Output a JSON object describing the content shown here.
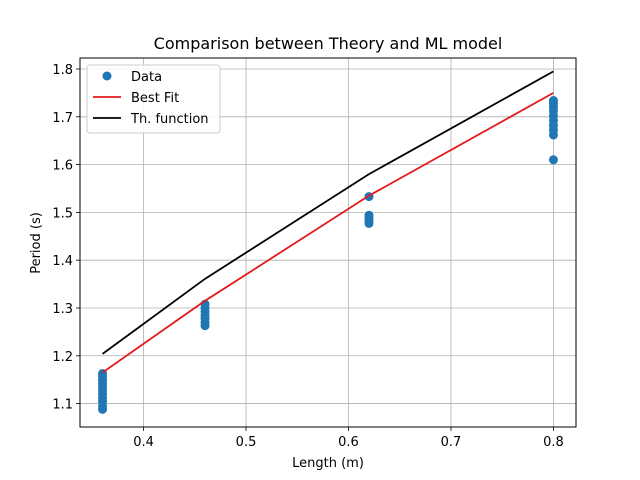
{
  "chart_data": {
    "type": "scatter",
    "title": "Comparison between Theory and ML model",
    "xlabel": "Length (m)",
    "ylabel": "Period (s)",
    "xlim": [
      0.338,
      0.822
    ],
    "ylim": [
      1.051,
      1.823
    ],
    "xticks": [
      "0.4",
      "0.5",
      "0.6",
      "0.7",
      "0.8"
    ],
    "yticks": [
      "1.1",
      "1.2",
      "1.3",
      "1.4",
      "1.5",
      "1.6",
      "1.7",
      "1.8"
    ],
    "grid": true,
    "legend_position": "top-left",
    "series": [
      {
        "name": "Data",
        "kind": "scatter",
        "color": "#1f77b4",
        "points": [
          [
            0.36,
            1.088
          ],
          [
            0.36,
            1.095
          ],
          [
            0.36,
            1.105
          ],
          [
            0.36,
            1.112
          ],
          [
            0.36,
            1.12
          ],
          [
            0.36,
            1.128
          ],
          [
            0.36,
            1.135
          ],
          [
            0.36,
            1.142
          ],
          [
            0.36,
            1.15
          ],
          [
            0.36,
            1.157
          ],
          [
            0.36,
            1.163
          ],
          [
            0.46,
            1.263
          ],
          [
            0.46,
            1.27
          ],
          [
            0.46,
            1.278
          ],
          [
            0.46,
            1.285
          ],
          [
            0.46,
            1.293
          ],
          [
            0.46,
            1.3
          ],
          [
            0.46,
            1.308
          ],
          [
            0.62,
            1.477
          ],
          [
            0.62,
            1.482
          ],
          [
            0.62,
            1.488
          ],
          [
            0.62,
            1.494
          ],
          [
            0.62,
            1.533
          ],
          [
            0.8,
            1.61
          ],
          [
            0.8,
            1.662
          ],
          [
            0.8,
            1.672
          ],
          [
            0.8,
            1.682
          ],
          [
            0.8,
            1.692
          ],
          [
            0.8,
            1.702
          ],
          [
            0.8,
            1.712
          ],
          [
            0.8,
            1.72
          ],
          [
            0.8,
            1.728
          ],
          [
            0.8,
            1.734
          ]
        ]
      },
      {
        "name": "Best Fit",
        "kind": "line",
        "color": "#e31a1c",
        "points": [
          [
            0.36,
            1.165
          ],
          [
            0.46,
            1.315
          ],
          [
            0.62,
            1.535
          ],
          [
            0.8,
            1.75
          ]
        ]
      },
      {
        "name": "Th. function",
        "kind": "line",
        "color": "#000000",
        "points": [
          [
            0.36,
            1.204
          ],
          [
            0.46,
            1.361
          ],
          [
            0.62,
            1.58
          ],
          [
            0.8,
            1.795
          ]
        ]
      }
    ]
  }
}
